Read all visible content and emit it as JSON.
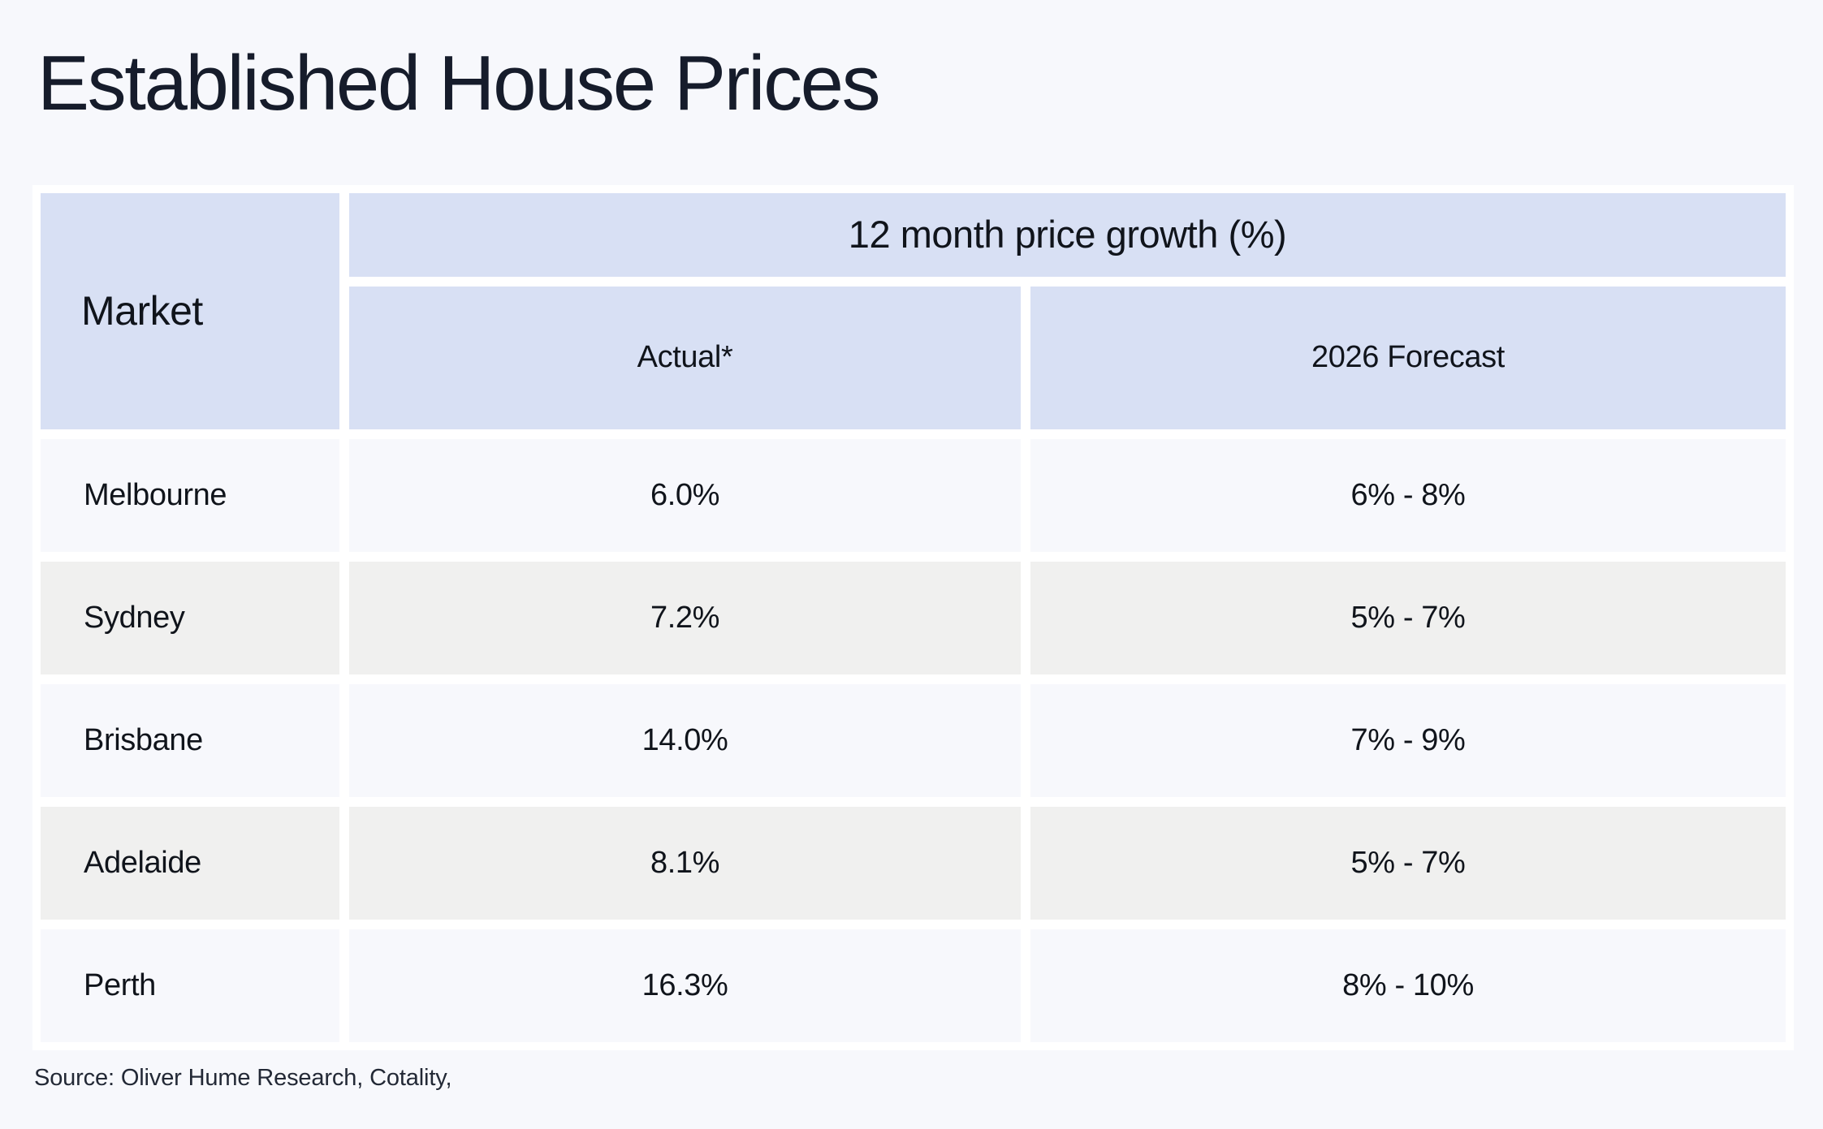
{
  "page": {
    "title": "Established House Prices",
    "source": "Source: Oliver Hume Research, Cotality,"
  },
  "colors": {
    "page_bg": "#f7f8fc",
    "frame_white": "#ffffff",
    "header_bg": "#d8e0f4",
    "row_light_bg": "#f7f8fc",
    "row_gray_bg": "#f0f0ef",
    "cell_text": "#10141b",
    "title_text": "#161c2b",
    "source_text": "#232936"
  },
  "table": {
    "market_header": "Market",
    "group_header": "12 month price growth (%)",
    "columns": [
      "Actual*",
      "2026 Forecast"
    ],
    "rows": [
      {
        "market": "Melbourne",
        "actual": "6.0%",
        "forecast": "6% - 8%"
      },
      {
        "market": "Sydney",
        "actual": "7.2%",
        "forecast": "5% - 7%"
      },
      {
        "market": "Brisbane",
        "actual": "14.0%",
        "forecast": "7% - 9%"
      },
      {
        "market": "Adelaide",
        "actual": "8.1%",
        "forecast": "5% - 7%"
      },
      {
        "market": "Perth",
        "actual": "16.3%",
        "forecast": "8% - 10%"
      }
    ]
  },
  "chart_data": {
    "type": "table",
    "title": "Established House Prices",
    "group_header": "12 month price growth (%)",
    "columns": [
      "Market",
      "Actual*",
      "2026 Forecast"
    ],
    "categories": [
      "Melbourne",
      "Sydney",
      "Brisbane",
      "Adelaide",
      "Perth"
    ],
    "series": [
      {
        "name": "Actual*",
        "values": [
          6.0,
          7.2,
          14.0,
          8.1,
          16.3
        ],
        "unit": "%"
      },
      {
        "name": "2026 Forecast",
        "values": [
          "6% - 8%",
          "5% - 7%",
          "7% - 9%",
          "5% - 7%",
          "8% - 10%"
        ]
      }
    ],
    "source": "Source: Oliver Hume Research, Cotality,"
  }
}
